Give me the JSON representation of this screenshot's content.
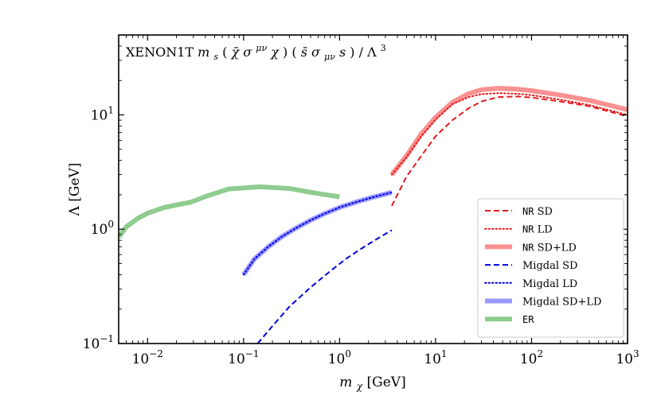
{
  "chart_data": {
    "type": "line",
    "title": "XENON1T m_s(χ̄σ^{μν}χ)(s̄σ_{μν}s)/Λ^3",
    "title_parts": {
      "prefix": "XENON1T ",
      "m": "m",
      "m_sub": "s",
      "bracket1_open": "(",
      "chibar": "χ̄",
      "sigma1": "σ",
      "sigma1_sup": "μν",
      "chi": "χ",
      "bracket1_close": ")",
      "bracket2_open": "(",
      "sbar": "s̄",
      "sigma2": "σ",
      "sigma2_sub": "μν",
      "s": "s",
      "bracket2_close": ")",
      "over": "/",
      "lambda": "Λ",
      "lambda_sup": "3"
    },
    "xlabel": "m_χ [GeV]",
    "xlabel_parts": {
      "m": "m",
      "sub": "χ",
      "unit": " [GeV]"
    },
    "ylabel": "Λ [GeV]",
    "ylabel_parts": {
      "symbol": "Λ",
      "unit": " [GeV]"
    },
    "x_scale": "log",
    "y_scale": "log",
    "xlim": [
      0.005,
      1000
    ],
    "ylim": [
      0.1,
      50
    ],
    "x_ticks": [
      {
        "value": 0.01,
        "base": "10",
        "exp": "−2"
      },
      {
        "value": 0.1,
        "base": "10",
        "exp": "−1"
      },
      {
        "value": 1,
        "base": "10",
        "exp": "0"
      },
      {
        "value": 10,
        "base": "10",
        "exp": "1"
      },
      {
        "value": 100,
        "base": "10",
        "exp": "2"
      },
      {
        "value": 1000,
        "base": "10",
        "exp": "3"
      }
    ],
    "y_ticks": [
      {
        "value": 0.1,
        "base": "10",
        "exp": "−1"
      },
      {
        "value": 1,
        "base": "10",
        "exp": "0"
      },
      {
        "value": 10,
        "base": "10",
        "exp": "1"
      }
    ],
    "legend_position": "lower-right",
    "series": [
      {
        "name": "NR SD",
        "legend_mono": "NR",
        "legend_rest": " SD",
        "color": "#e41a1c",
        "style": "dashed",
        "width": 2,
        "x": [
          3.5,
          5,
          7,
          10,
          15,
          22,
          30,
          45,
          70,
          100,
          200,
          400,
          1000
        ],
        "y": [
          1.6,
          2.9,
          4.3,
          6.5,
          9.0,
          11.4,
          13.1,
          14.3,
          14.5,
          14.2,
          13.1,
          11.9,
          9.7
        ]
      },
      {
        "name": "NR LD",
        "legend_mono": "NR",
        "legend_rest": " LD",
        "color": "#e41a1c",
        "style": "dotted",
        "width": 2,
        "x": [
          3.5,
          5,
          7,
          10,
          15,
          22,
          30,
          45,
          70,
          100,
          200,
          400,
          1000
        ],
        "y": [
          3.0,
          4.3,
          6.4,
          9.1,
          12.4,
          14.3,
          15.2,
          15.5,
          15.3,
          14.9,
          13.6,
          12.2,
          10.0
        ]
      },
      {
        "name": "NR SD+LD",
        "legend_mono": "NR",
        "legend_rest": " SD+LD",
        "color": "#fa9191",
        "style": "solid",
        "width": 6,
        "x": [
          3.5,
          5,
          7,
          10,
          15,
          22,
          30,
          45,
          70,
          100,
          200,
          400,
          1000
        ],
        "y": [
          3.0,
          4.4,
          6.7,
          9.5,
          12.9,
          15.3,
          16.6,
          17.1,
          16.8,
          16.3,
          14.9,
          13.4,
          11.1
        ]
      },
      {
        "name": "Migdal SD",
        "legend_mono": "",
        "legend_rest": "Migdal SD",
        "color": "#0000dd",
        "style": "dashed",
        "width": 2,
        "x": [
          0.14,
          0.2,
          0.3,
          0.5,
          0.8,
          1.2,
          1.8,
          2.5,
          3.5
        ],
        "y": [
          0.1,
          0.142,
          0.21,
          0.31,
          0.43,
          0.56,
          0.7,
          0.83,
          0.98
        ]
      },
      {
        "name": "Migdal LD",
        "legend_mono": "",
        "legend_rest": "Migdal LD",
        "color": "#0000dd",
        "style": "dotted",
        "width": 2,
        "x": [
          0.1,
          0.13,
          0.18,
          0.25,
          0.35,
          0.5,
          0.7,
          1.0,
          1.5,
          2.2,
          3.5
        ],
        "y": [
          0.4,
          0.55,
          0.7,
          0.86,
          1.02,
          1.2,
          1.37,
          1.55,
          1.73,
          1.9,
          2.1
        ]
      },
      {
        "name": "Migdal SD+LD",
        "legend_mono": "",
        "legend_rest": "Migdal SD+LD",
        "color": "#9999ff",
        "style": "solid",
        "width": 6,
        "x": [
          0.1,
          0.13,
          0.18,
          0.25,
          0.35,
          0.5,
          0.7,
          1.0,
          1.5,
          2.2,
          3.5
        ],
        "y": [
          0.4,
          0.55,
          0.7,
          0.86,
          1.02,
          1.2,
          1.37,
          1.55,
          1.73,
          1.9,
          2.1
        ]
      },
      {
        "name": "ER",
        "legend_mono": "ER",
        "legend_rest": "",
        "color": "#8fcc8f",
        "style": "solid",
        "width": 6,
        "x": [
          0.005,
          0.006,
          0.008,
          0.01,
          0.015,
          0.02,
          0.028,
          0.04,
          0.07,
          0.15,
          0.3,
          0.6,
          1.0
        ],
        "y": [
          0.85,
          1.05,
          1.25,
          1.38,
          1.55,
          1.63,
          1.72,
          1.93,
          2.25,
          2.35,
          2.27,
          2.05,
          1.92
        ]
      }
    ]
  }
}
